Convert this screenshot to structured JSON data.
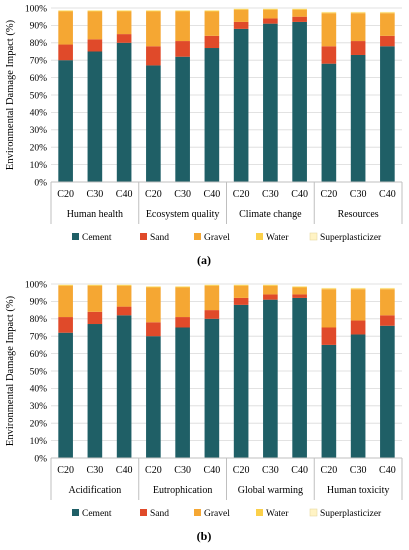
{
  "chart_data": [
    {
      "type": "bar",
      "stacked": true,
      "caption": "(a)",
      "ylabel": "Environmental Damage Impact (%)",
      "ylim": [
        0,
        100
      ],
      "yticks": [
        "0%",
        "10%",
        "20%",
        "30%",
        "40%",
        "50%",
        "60%",
        "70%",
        "80%",
        "90%",
        "100%"
      ],
      "categories": [
        "C20",
        "C30",
        "C40",
        "C20",
        "C30",
        "C40",
        "C20",
        "C30",
        "C40",
        "C20",
        "C30",
        "C40"
      ],
      "groups": [
        "Human health",
        "Ecosystem quality",
        "Climate change",
        "Resources"
      ],
      "legend_position": "bottom",
      "series": [
        {
          "name": "Cement",
          "color": "#1f5f66",
          "values": [
            70,
            75,
            80,
            67,
            72,
            77,
            88,
            91,
            92,
            68,
            73,
            78
          ]
        },
        {
          "name": "Sand",
          "color": "#e04a2a",
          "values": [
            9,
            7,
            5,
            11,
            9,
            7,
            4,
            3,
            3,
            10,
            8,
            6
          ]
        },
        {
          "name": "Gravel",
          "color": "#f5a733",
          "values": [
            19,
            16,
            13,
            20,
            17,
            14,
            7,
            5,
            4,
            19,
            16,
            13
          ]
        },
        {
          "name": "Water",
          "color": "#fbd04a",
          "values": [
            0.5,
            0.5,
            0.5,
            0.5,
            0.5,
            0.5,
            0.5,
            0.5,
            0.5,
            0.5,
            0.5,
            0.5
          ]
        },
        {
          "name": "Superplasticizer",
          "color": "#fff3c4",
          "values": [
            0.3,
            0.3,
            0.3,
            0.3,
            0.3,
            0.3,
            0.3,
            0.3,
            0.3,
            0.3,
            0.3,
            0.3
          ]
        }
      ]
    },
    {
      "type": "bar",
      "stacked": true,
      "caption": "(b)",
      "ylabel": "Environmental Damage Impact (%)",
      "ylim": [
        0,
        100
      ],
      "yticks": [
        "0%",
        "10%",
        "20%",
        "30%",
        "40%",
        "50%",
        "60%",
        "70%",
        "80%",
        "90%",
        "100%"
      ],
      "categories": [
        "C20",
        "C30",
        "C40",
        "C20",
        "C30",
        "C40",
        "C20",
        "C30",
        "C40",
        "C20",
        "C30",
        "C40"
      ],
      "groups": [
        "Acidification",
        "Eutrophication",
        "Global warming",
        "Human toxicity"
      ],
      "legend_position": "bottom",
      "series": [
        {
          "name": "Cement",
          "color": "#1f5f66",
          "values": [
            72,
            77,
            82,
            70,
            75,
            80,
            88,
            91,
            92,
            65,
            71,
            76
          ]
        },
        {
          "name": "Sand",
          "color": "#e04a2a",
          "values": [
            9,
            7,
            5,
            8,
            6,
            5,
            4,
            3,
            2,
            10,
            8,
            6
          ]
        },
        {
          "name": "Gravel",
          "color": "#f5a733",
          "values": [
            18,
            15,
            12,
            20,
            17,
            14,
            7,
            5,
            4,
            22,
            18,
            15
          ]
        },
        {
          "name": "Water",
          "color": "#fbd04a",
          "values": [
            0.5,
            0.5,
            0.5,
            0.5,
            0.5,
            0.5,
            0.5,
            0.5,
            0.5,
            0.5,
            0.5,
            0.5
          ]
        },
        {
          "name": "Superplasticizer",
          "color": "#fff3c4",
          "values": [
            0.3,
            0.3,
            0.3,
            0.3,
            0.3,
            0.3,
            0.3,
            0.3,
            0.3,
            0.3,
            0.3,
            0.3
          ]
        }
      ]
    }
  ]
}
